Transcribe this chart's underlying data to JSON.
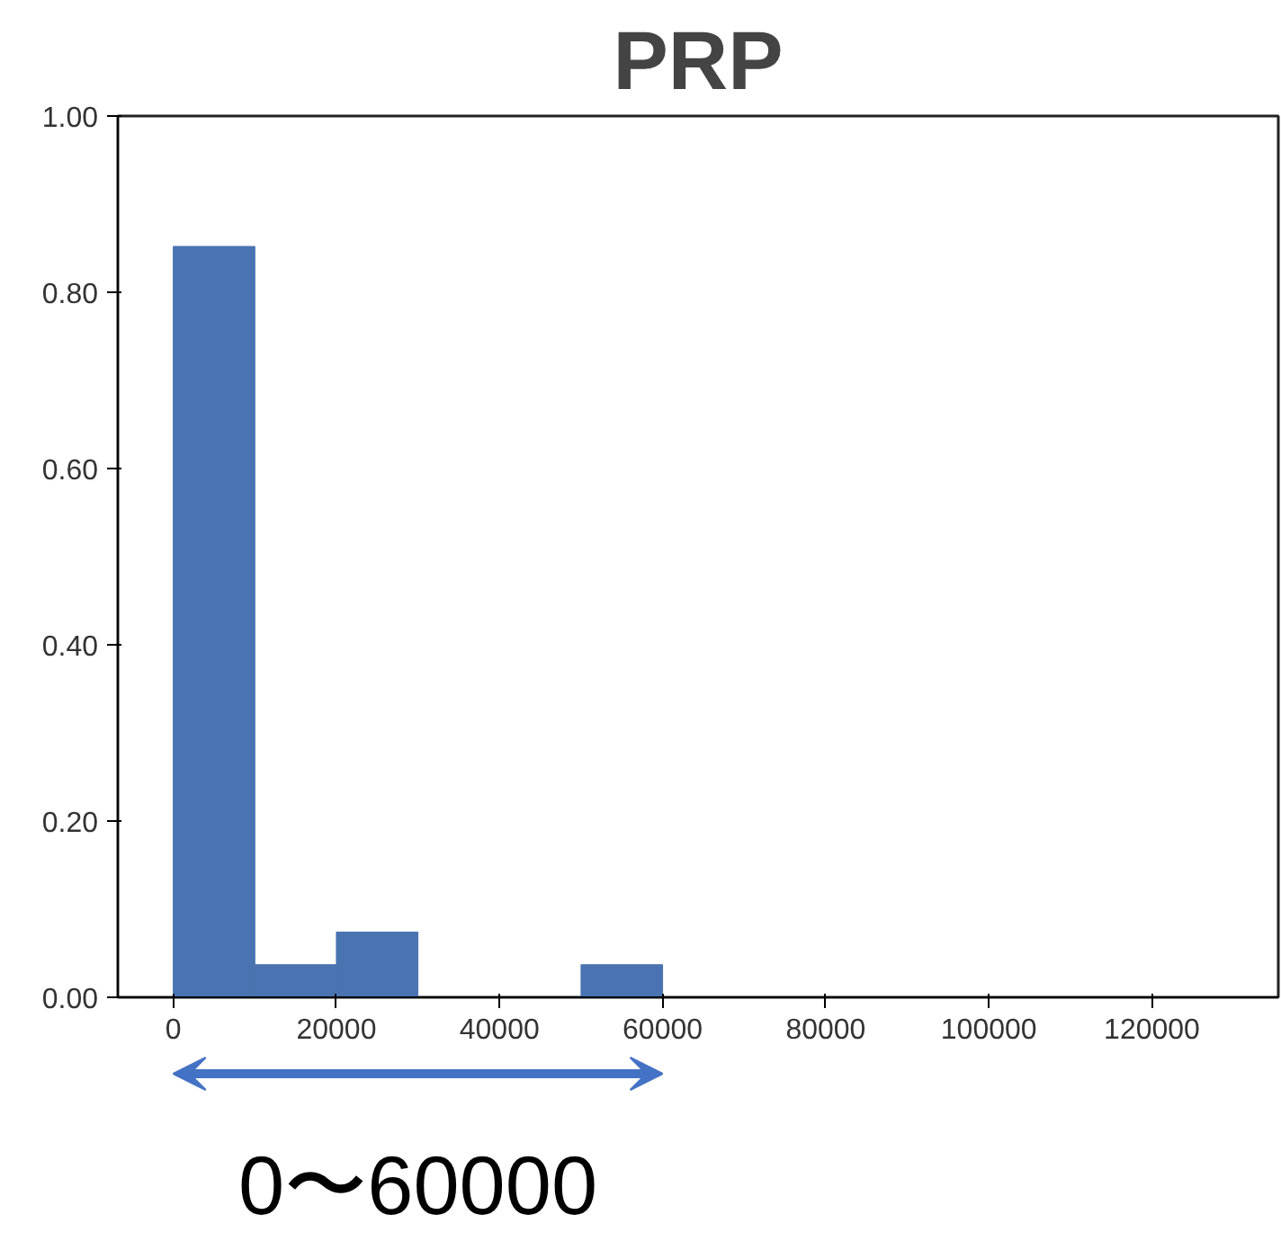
{
  "chart_data": {
    "type": "histogram",
    "title": "PRP",
    "bins": [
      0,
      10000,
      20000,
      30000,
      40000,
      50000,
      60000
    ],
    "values": [
      0.852,
      0.037,
      0.074,
      0,
      0,
      0.037
    ],
    "color": "#4a73b1",
    "xlim": [
      -6800,
      135500
    ],
    "ylim": [
      0,
      1
    ],
    "xticks": [
      0,
      20000,
      40000,
      60000,
      80000,
      100000,
      120000
    ],
    "yticks": [
      {
        "value": 0,
        "label": "0.00"
      },
      {
        "value": 0.2,
        "label": "0.20"
      },
      {
        "value": 0.4,
        "label": "0.40"
      },
      {
        "value": 0.6,
        "label": "0.60"
      },
      {
        "value": 0.8,
        "label": "0.80"
      },
      {
        "value": 1,
        "label": "1.00"
      }
    ],
    "grid": false,
    "annotations": [
      "0〜60000"
    ]
  }
}
